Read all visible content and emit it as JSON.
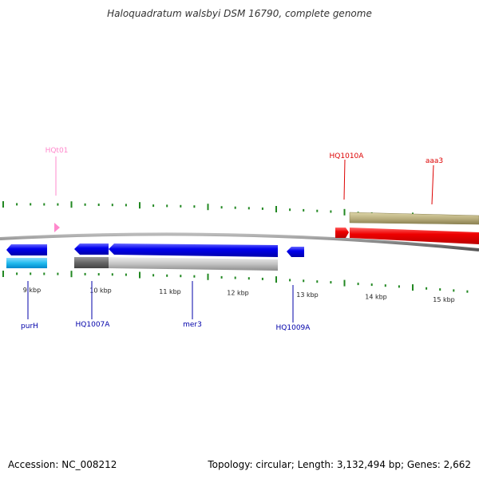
{
  "title": "Haloquadratum walsbyi DSM 16790, complete genome",
  "footer": {
    "accession": "Accession: NC_008212",
    "summary": "Topology: circular; Length: 3,132,494 bp; Genes: 2,662"
  },
  "scale": {
    "ticks": [
      {
        "label": "9 kbp",
        "kbp": 9
      },
      {
        "label": "10 kbp",
        "kbp": 10
      },
      {
        "label": "11 kbp",
        "kbp": 11
      },
      {
        "label": "12 kbp",
        "kbp": 12
      },
      {
        "label": "13 kbp",
        "kbp": 13
      },
      {
        "label": "14 kbp",
        "kbp": 14
      },
      {
        "label": "15 kbp",
        "kbp": 15
      }
    ]
  },
  "genes": {
    "hqt01": {
      "label": "HQt01",
      "color": "#ff88cc"
    },
    "hq1010a": {
      "label": "HQ1010A",
      "color": "#dd0000"
    },
    "aaa3": {
      "label": "aaa3",
      "color": "#dd0000"
    },
    "purh": {
      "label": "purH",
      "color": "#0000aa"
    },
    "hq1007a": {
      "label": "HQ1007A",
      "color": "#0000aa"
    },
    "mer3": {
      "label": "mer3",
      "color": "#0000aa"
    },
    "hq1009a": {
      "label": "HQ1009A",
      "color": "#0000aa"
    }
  },
  "colors": {
    "backbone": "#888888",
    "tick": "#228822",
    "cds_forward": "#dd0000",
    "cds_reverse": "#0000ee",
    "feature_tan": "#bbb080",
    "feature_cyan": "#22bbee",
    "feature_gray": "#c0c0c0",
    "trna": "#ff88cc"
  }
}
